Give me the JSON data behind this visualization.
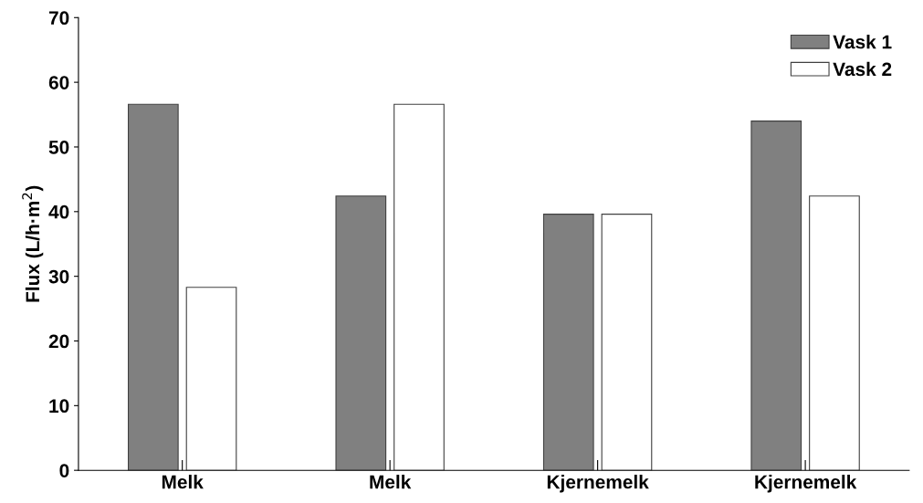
{
  "chart_data": {
    "type": "bar",
    "ylabel": "Flux (L/h·m$^{2}$)",
    "categories": [
      "Melk",
      "Melk",
      "Kjernemelk",
      "Kjernemelk"
    ],
    "series": [
      {
        "name": "Vask 1",
        "color": "#808080",
        "values": [
          56.6,
          42.4,
          39.6,
          54.0
        ]
      },
      {
        "name": "Vask 2",
        "color": "#ffffff",
        "values": [
          28.3,
          56.6,
          39.6,
          42.4
        ]
      }
    ],
    "ylim": [
      0,
      70
    ],
    "yticks": [
      0,
      10,
      20,
      30,
      40,
      50,
      60,
      70
    ],
    "grid": false,
    "legend": "top right"
  }
}
